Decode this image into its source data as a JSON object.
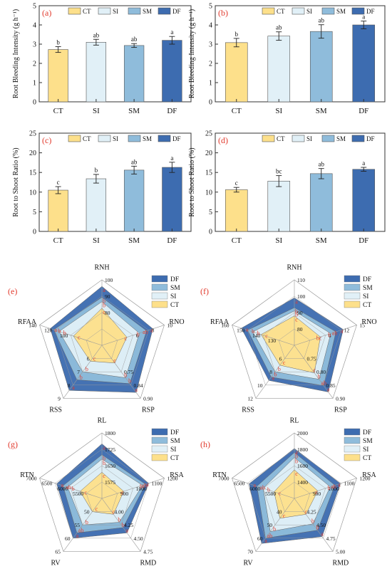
{
  "palette": {
    "CT": "#fde08b",
    "SI": "#e1f0f7",
    "SM": "#8fbcdb",
    "DF": "#3d6cb0",
    "letter": "#e23b2e",
    "axis": "#333333",
    "web": "#9a9a9a"
  },
  "legend_order": [
    "CT",
    "SI",
    "SM",
    "DF"
  ],
  "chart_data": [
    {
      "type": "bar",
      "panel_label": "(a)",
      "categories": [
        "CT",
        "SI",
        "SM",
        "DF"
      ],
      "values": [
        2.72,
        3.1,
        2.93,
        3.2
      ],
      "errors": [
        0.15,
        0.15,
        0.1,
        0.2
      ],
      "letters": [
        "b",
        "ab",
        "ab",
        "a"
      ],
      "ylabel": "Root Bleeding Intensity (g h⁻¹)",
      "ylim": [
        0,
        5
      ],
      "yticks": [
        0,
        1,
        2,
        3,
        4,
        5
      ],
      "legend": [
        "CT",
        "SI",
        "SM",
        "DF"
      ]
    },
    {
      "type": "bar",
      "panel_label": "(b)",
      "categories": [
        "CT",
        "SI",
        "SM",
        "DF"
      ],
      "values": [
        3.08,
        3.42,
        3.66,
        4.0
      ],
      "errors": [
        0.22,
        0.22,
        0.35,
        0.2
      ],
      "letters": [
        "b",
        "ab",
        "ab",
        "a"
      ],
      "ylabel": "Root Bleeding Intensity (g h⁻¹)",
      "ylim": [
        0,
        5
      ],
      "yticks": [
        0,
        1,
        2,
        3,
        4,
        5
      ],
      "legend": [
        "CT",
        "SI",
        "SM",
        "DF"
      ]
    },
    {
      "type": "bar",
      "panel_label": "(c)",
      "categories": [
        "CT",
        "SI",
        "SM",
        "DF"
      ],
      "values": [
        10.5,
        13.4,
        15.6,
        16.3
      ],
      "errors": [
        0.9,
        1.1,
        1.0,
        1.3
      ],
      "letters": [
        "c",
        "b",
        "ab",
        "a"
      ],
      "ylabel": "Root to Shoot Ratio (%)",
      "ylim": [
        0,
        25
      ],
      "yticks": [
        0,
        5,
        10,
        15,
        20,
        25
      ],
      "legend": [
        "CT",
        "SI",
        "SM",
        "DF"
      ]
    },
    {
      "type": "bar",
      "panel_label": "(d)",
      "categories": [
        "CT",
        "SI",
        "SM",
        "DF"
      ],
      "values": [
        10.6,
        12.8,
        14.7,
        15.8
      ],
      "errors": [
        0.6,
        1.4,
        1.3,
        0.5
      ],
      "letters": [
        "c",
        "bc",
        "ab",
        "a"
      ],
      "ylabel": "Root to Shoot Ratio (%)",
      "ylim": [
        0,
        25
      ],
      "yticks": [
        0,
        5,
        10,
        15,
        20,
        25
      ],
      "legend": [
        "CT",
        "SI",
        "SM",
        "DF"
      ]
    },
    {
      "type": "radar",
      "panel_label": "(e)",
      "axes": [
        "RNH",
        "RNO",
        "RSP",
        "RSS",
        "RFAA"
      ],
      "axis_ranges": [
        [
          70,
          100
        ],
        [
          4,
          10
        ],
        [
          0.72,
          0.9
        ],
        [
          5,
          9
        ],
        [
          70,
          140
        ]
      ],
      "tick_labels": [
        [
          "80",
          "90",
          "100"
        ],
        [
          "6",
          "8",
          "10"
        ],
        [
          "0.75",
          "0.84",
          "0.90"
        ],
        [
          "6",
          "7",
          "8",
          "9"
        ],
        [
          "100",
          "120",
          "140"
        ]
      ],
      "series": [
        {
          "name": "CT",
          "values": [
            87,
            6.4,
            0.78,
            6.2,
            102
          ],
          "letters": [
            "c",
            "c",
            "c",
            "c",
            "c"
          ]
        },
        {
          "name": "SI",
          "values": [
            90,
            7.6,
            0.83,
            7.0,
            118
          ],
          "letters": [
            "b",
            "b",
            "b",
            "b",
            "b"
          ]
        },
        {
          "name": "SM",
          "values": [
            92,
            8.3,
            0.85,
            7.6,
            124
          ],
          "letters": [
            "b",
            "ab",
            "b",
            "b",
            "b"
          ]
        },
        {
          "name": "DF",
          "values": [
            97,
            8.9,
            0.88,
            8.4,
            128
          ],
          "letters": [
            "a",
            "a",
            "a",
            "a",
            "a"
          ]
        }
      ],
      "legend": [
        "DF",
        "SM",
        "SI",
        "CT"
      ]
    },
    {
      "type": "radar",
      "panel_label": "(f)",
      "axes": [
        "RNH",
        "RNO",
        "RSP",
        "RSS",
        "RFAA"
      ],
      "axis_ranges": [
        [
          70,
          110
        ],
        [
          3,
          15
        ],
        [
          0.65,
          0.9
        ],
        [
          4,
          12
        ],
        [
          100,
          160
        ]
      ],
      "tick_labels": [
        [
          "80",
          "90",
          "100",
          "110"
        ],
        [
          "6",
          "12",
          "15"
        ],
        [
          "0.75",
          "0.80",
          "0.85",
          "0.90"
        ],
        [
          "6",
          "8",
          "10",
          "12"
        ],
        [
          "130",
          "140",
          "150",
          "160"
        ]
      ],
      "series": [
        {
          "name": "CT",
          "values": [
            88,
            8.0,
            0.78,
            7.0,
            132
          ],
          "letters": [
            "c",
            "bc",
            "c",
            "c",
            "c"
          ]
        },
        {
          "name": "SI",
          "values": [
            91,
            10.0,
            0.81,
            8.0,
            140
          ],
          "letters": [
            "b",
            "b",
            "b",
            "b",
            "b"
          ]
        },
        {
          "name": "SM",
          "values": [
            93,
            11.0,
            0.84,
            8.8,
            145
          ],
          "letters": [
            "b",
            "ab",
            "ab",
            "b",
            "b"
          ]
        },
        {
          "name": "DF",
          "values": [
            99,
            12.4,
            0.87,
            9.3,
            151
          ],
          "letters": [
            "a",
            "a",
            "a",
            "a",
            "a"
          ]
        }
      ],
      "legend": [
        "DF",
        "SM",
        "SI",
        "CT"
      ]
    },
    {
      "type": "radar",
      "panel_label": "(g)",
      "axes": [
        "RL",
        "RSA",
        "RMD",
        "RV",
        "RTN"
      ],
      "axis_ranges": [
        [
          1500,
          1800
        ],
        [
          800,
          1200
        ],
        [
          3.75,
          4.75
        ],
        [
          45,
          65
        ],
        [
          5000,
          7000
        ]
      ],
      "tick_labels": [
        [
          "1575",
          "1650",
          "1725",
          "1800"
        ],
        [
          "900",
          "1000",
          "1100",
          "1200"
        ],
        [
          "4.00",
          "4.25",
          "4.50",
          "4.75"
        ],
        [
          "50",
          "55",
          "60",
          "65"
        ],
        [
          "5500",
          "6000",
          "6500",
          "7000"
        ]
      ],
      "series": [
        {
          "name": "CT",
          "values": [
            1620,
            940,
            4.05,
            50,
            5700
          ],
          "letters": [
            "c",
            "c",
            "c",
            "c",
            "c"
          ]
        },
        {
          "name": "SI",
          "values": [
            1680,
            1060,
            4.2,
            55,
            6100
          ],
          "letters": [
            "b",
            "b",
            "b",
            "b",
            "b"
          ]
        },
        {
          "name": "SM",
          "values": [
            1700,
            1080,
            4.3,
            58,
            6250
          ],
          "letters": [
            "b",
            "ab",
            "b",
            "ab",
            "ab"
          ]
        },
        {
          "name": "DF",
          "values": [
            1750,
            1100,
            4.4,
            60,
            6450
          ],
          "letters": [
            "a",
            "a",
            "a",
            "a",
            "a"
          ]
        }
      ],
      "legend": [
        "DF",
        "SM",
        "SI",
        "CT"
      ]
    },
    {
      "type": "radar",
      "panel_label": "(h)",
      "axes": [
        "RL",
        "RSA",
        "RMD",
        "RV",
        "RTN"
      ],
      "axis_ranges": [
        [
          1200,
          2000
        ],
        [
          800,
          1200
        ],
        [
          4.0,
          5.0
        ],
        [
          30,
          70
        ],
        [
          5000,
          7000
        ]
      ],
      "tick_labels": [
        [
          "1400",
          "1600",
          "1800",
          "2000"
        ],
        [
          "900",
          "1000",
          "1100",
          "1200"
        ],
        [
          "4.25",
          "4.50",
          "4.75",
          "5.00"
        ],
        [
          "40",
          "50",
          "60",
          "70"
        ],
        [
          "5500",
          "6000",
          "6500",
          "7000"
        ]
      ],
      "series": [
        {
          "name": "CT",
          "values": [
            1550,
            950,
            4.3,
            45,
            5650
          ],
          "letters": [
            "c",
            "c",
            "c",
            "c",
            "c"
          ]
        },
        {
          "name": "SI",
          "values": [
            1700,
            1030,
            4.48,
            55,
            6000
          ],
          "letters": [
            "b",
            "b",
            "b",
            "b",
            "b"
          ]
        },
        {
          "name": "SM",
          "values": [
            1760,
            1060,
            4.6,
            60,
            6200
          ],
          "letters": [
            "b",
            "ab",
            "b",
            "ab",
            "ab"
          ]
        },
        {
          "name": "DF",
          "values": [
            1810,
            1095,
            4.72,
            64,
            6450
          ],
          "letters": [
            "a",
            "a",
            "a",
            "a",
            "a"
          ]
        }
      ],
      "legend": [
        "DF",
        "SM",
        "SI",
        "CT"
      ]
    }
  ]
}
